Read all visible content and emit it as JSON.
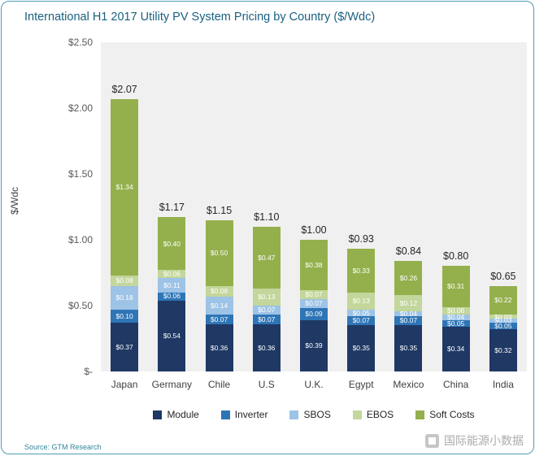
{
  "title": "International H1 2017 Utility PV System Pricing by Country ($/Wdc)",
  "source": "Source: GTM Research",
  "watermark": {
    "text": "国际能源小数据"
  },
  "colors": {
    "border_accent": "#4E9DB4",
    "title_text": "#1A6080",
    "plot_background": "#F0F0F0",
    "module": "#1F3864",
    "inverter": "#2E75B6",
    "sbos": "#9DC3E6",
    "ebos": "#C3D69B",
    "soft_costs": "#94B04D"
  },
  "chart_data": {
    "type": "bar",
    "stacked": true,
    "title": "International H1 2017 Utility PV System Pricing by Country ($/Wdc)",
    "xlabel": "",
    "ylabel": "$/Wdc",
    "ylim": [
      0,
      2.5
    ],
    "grid": false,
    "legend_position": "bottom",
    "yticks": [
      {
        "value": 2.5,
        "label": "$2.50"
      },
      {
        "value": 2.0,
        "label": "$2.00"
      },
      {
        "value": 1.5,
        "label": "$1.50"
      },
      {
        "value": 1.0,
        "label": "$1.00"
      },
      {
        "value": 0.5,
        "label": "$0.50"
      },
      {
        "value": 0,
        "label": "$-"
      }
    ],
    "categories": [
      "Japan",
      "Germany",
      "Chile",
      "U.S",
      "U.K.",
      "Egypt",
      "Mexico",
      "China",
      "India"
    ],
    "totals": [
      "$2.07",
      "$1.17",
      "$1.15",
      "$1.10",
      "$1.00",
      "$0.93",
      "$0.84",
      "$0.80",
      "$0.65"
    ],
    "series": [
      {
        "name": "Module",
        "color": "#1F3864",
        "values": [
          0.37,
          0.54,
          0.36,
          0.36,
          0.39,
          0.35,
          0.35,
          0.34,
          0.32
        ]
      },
      {
        "name": "Inverter",
        "color": "#2E75B6",
        "values": [
          0.1,
          0.06,
          0.07,
          0.07,
          0.09,
          0.07,
          0.07,
          0.05,
          0.05
        ]
      },
      {
        "name": "SBOS",
        "color": "#9DC3E6",
        "values": [
          0.18,
          0.11,
          0.14,
          0.07,
          0.07,
          0.05,
          0.04,
          0.04,
          0.03
        ]
      },
      {
        "name": "EBOS",
        "color": "#C3D69B",
        "values": [
          0.08,
          0.06,
          0.08,
          0.13,
          0.07,
          0.13,
          0.12,
          0.06,
          0.03
        ]
      },
      {
        "name": "Soft Costs",
        "color": "#94B04D",
        "values": [
          1.34,
          0.4,
          0.5,
          0.47,
          0.38,
          0.33,
          0.26,
          0.31,
          0.22
        ]
      }
    ]
  }
}
